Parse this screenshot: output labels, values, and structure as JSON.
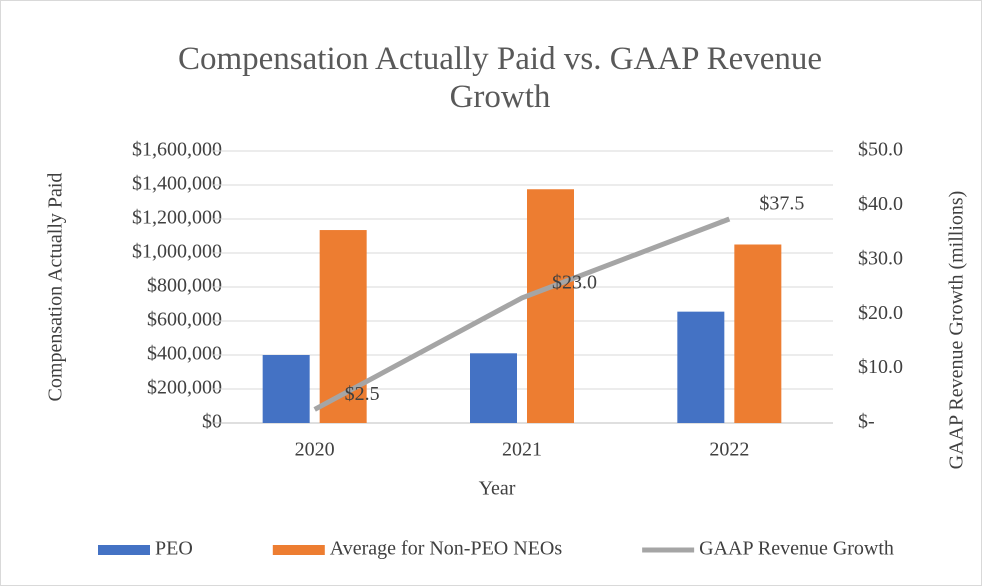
{
  "chart_data": {
    "type": "bar",
    "title": "Compensation Actually Paid vs. GAAP Revenue Growth",
    "x_label": "Year",
    "y_label": "Compensation Actually Paid",
    "y2_label": "GAAP Revenue Growth (millions)",
    "categories": [
      "2020",
      "2021",
      "2022"
    ],
    "series": [
      {
        "name": "PEO",
        "color": "#4472c4",
        "values": [
          400000,
          410000,
          655000
        ]
      },
      {
        "name": "Average for Non-PEO NEOs",
        "color": "#ed7d31",
        "values": [
          1135000,
          1375000,
          1050000
        ]
      },
      {
        "name": "GAAP Revenue Growth",
        "color": "#a5a5a5",
        "type": "line",
        "axis": "y2",
        "values": [
          2.5,
          23.0,
          37.5
        ],
        "value_labels": [
          "$2.5",
          "$23.0",
          "$37.5"
        ]
      }
    ],
    "ylim": [
      0,
      1600000
    ],
    "yticks": [
      {
        "value": 0,
        "label": "$0"
      },
      {
        "value": 200000,
        "label": "$200,000"
      },
      {
        "value": 400000,
        "label": "$400,000"
      },
      {
        "value": 600000,
        "label": "$600,000"
      },
      {
        "value": 800000,
        "label": "$800,000"
      },
      {
        "value": 1000000,
        "label": "$1,000,000"
      },
      {
        "value": 1200000,
        "label": "$1,200,000"
      },
      {
        "value": 1400000,
        "label": "$1,400,000"
      },
      {
        "value": 1600000,
        "label": "$1,600,000"
      }
    ],
    "y2lim": [
      0,
      50
    ],
    "y2ticks": [
      {
        "value": 0,
        "label": "$-"
      },
      {
        "value": 10,
        "label": "$10.0"
      },
      {
        "value": 20,
        "label": "$20.0"
      },
      {
        "value": 30,
        "label": "$30.0"
      },
      {
        "value": 40,
        "label": "$40.0"
      },
      {
        "value": 50,
        "label": "$50.0"
      }
    ],
    "grid": true,
    "legend": "bottom"
  }
}
